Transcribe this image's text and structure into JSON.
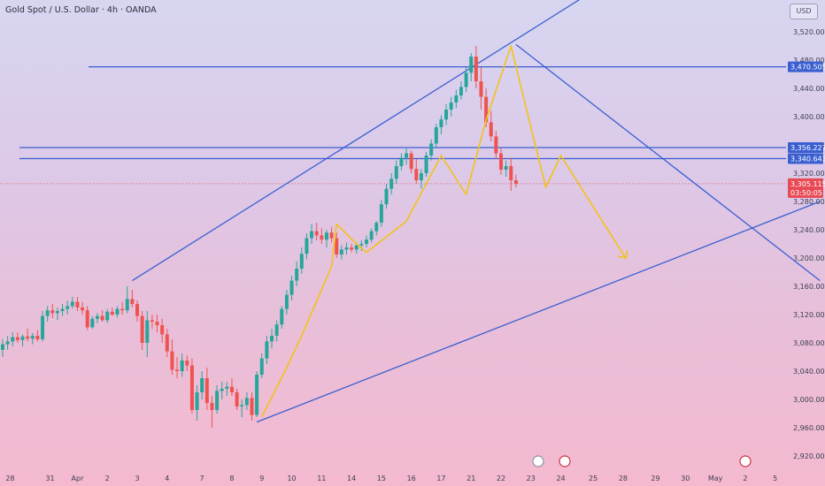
{
  "header": {
    "title": "Gold Spot / U.S. Dollar · 4h · OANDA",
    "currency": "USD"
  },
  "colors": {
    "up": "#26a69a",
    "down": "#ef5350",
    "trendline": "#3a5fd0",
    "projection": "#f2c21b",
    "current_price": "#e84a55"
  },
  "chart_data": {
    "type": "candlestick",
    "title": "Gold Spot / U.S. Dollar · 4h · OANDA",
    "ylim": [
      2910,
      3560
    ],
    "y_ticks": [
      2920,
      2960,
      3000,
      3040,
      3080,
      3120,
      3160,
      3200,
      3240,
      3280,
      3320,
      3360,
      3400,
      3440,
      3480,
      3520
    ],
    "y_tick_labels": [
      "2,920.000",
      "2,960.000",
      "3,000.000",
      "3,040.000",
      "3,080.000",
      "3,120.000",
      "3,160.000",
      "3,200.000",
      "3,240.000",
      "3,280.000",
      "3,320.000",
      "3,360.000",
      "3,400.000",
      "3,440.000",
      "3,480.000",
      "3,520.000"
    ],
    "x_ticks": [
      {
        "label": "28",
        "idx": 1.5
      },
      {
        "label": "31",
        "idx": 9.5
      },
      {
        "label": "Apr",
        "idx": 15
      },
      {
        "label": "2",
        "idx": 21
      },
      {
        "label": "3",
        "idx": 27
      },
      {
        "label": "4",
        "idx": 33
      },
      {
        "label": "7",
        "idx": 40
      },
      {
        "label": "8",
        "idx": 46
      },
      {
        "label": "9",
        "idx": 52
      },
      {
        "label": "10",
        "idx": 58
      },
      {
        "label": "11",
        "idx": 64
      },
      {
        "label": "14",
        "idx": 70
      },
      {
        "label": "15",
        "idx": 76
      },
      {
        "label": "16",
        "idx": 82
      },
      {
        "label": "17",
        "idx": 88
      },
      {
        "label": "21",
        "idx": 94
      },
      {
        "label": "22",
        "idx": 100
      },
      {
        "label": "23",
        "idx": 106
      },
      {
        "label": "24",
        "idx": 112
      },
      {
        "label": "25",
        "idx": 118.5
      },
      {
        "label": "28",
        "idx": 124.5
      },
      {
        "label": "29",
        "idx": 131
      },
      {
        "label": "30",
        "idx": 137
      },
      {
        "label": "May",
        "idx": 143
      },
      {
        "label": "2",
        "idx": 149
      },
      {
        "label": "5",
        "idx": 155
      }
    ],
    "candles": [
      [
        3070,
        3085,
        3060,
        3078
      ],
      [
        3078,
        3090,
        3070,
        3082
      ],
      [
        3082,
        3095,
        3075,
        3088
      ],
      [
        3088,
        3095,
        3080,
        3084
      ],
      [
        3084,
        3092,
        3075,
        3089
      ],
      [
        3089,
        3100,
        3082,
        3086
      ],
      [
        3086,
        3094,
        3078,
        3090
      ],
      [
        3090,
        3098,
        3082,
        3085
      ],
      [
        3085,
        3125,
        3082,
        3118
      ],
      [
        3118,
        3132,
        3110,
        3126
      ],
      [
        3126,
        3135,
        3115,
        3122
      ],
      [
        3122,
        3130,
        3112,
        3125
      ],
      [
        3125,
        3135,
        3118,
        3128
      ],
      [
        3128,
        3140,
        3120,
        3132
      ],
      [
        3132,
        3145,
        3128,
        3138
      ],
      [
        3138,
        3145,
        3125,
        3130
      ],
      [
        3130,
        3138,
        3120,
        3126
      ],
      [
        3126,
        3132,
        3098,
        3102
      ],
      [
        3102,
        3118,
        3100,
        3114
      ],
      [
        3114,
        3122,
        3108,
        3118
      ],
      [
        3118,
        3126,
        3110,
        3112
      ],
      [
        3112,
        3128,
        3108,
        3124
      ],
      [
        3124,
        3130,
        3118,
        3120
      ],
      [
        3120,
        3132,
        3116,
        3128
      ],
      [
        3128,
        3138,
        3120,
        3126
      ],
      [
        3126,
        3160,
        3122,
        3142
      ],
      [
        3142,
        3155,
        3130,
        3135
      ],
      [
        3135,
        3140,
        3110,
        3118
      ],
      [
        3118,
        3125,
        3070,
        3080
      ],
      [
        3080,
        3125,
        3060,
        3112
      ],
      [
        3112,
        3120,
        3100,
        3110
      ],
      [
        3110,
        3120,
        3095,
        3105
      ],
      [
        3105,
        3114,
        3080,
        3092
      ],
      [
        3092,
        3100,
        3060,
        3068
      ],
      [
        3068,
        3085,
        3035,
        3042
      ],
      [
        3042,
        3060,
        3030,
        3040
      ],
      [
        3040,
        3065,
        3032,
        3055
      ],
      [
        3055,
        3062,
        3040,
        3048
      ],
      [
        3048,
        3058,
        2980,
        2985
      ],
      [
        2985,
        3020,
        2970,
        3010
      ],
      [
        3010,
        3040,
        3000,
        3030
      ],
      [
        3030,
        3045,
        2985,
        2995
      ],
      [
        2995,
        3005,
        2960,
        2985
      ],
      [
        2985,
        3020,
        2980,
        3012
      ],
      [
        3012,
        3025,
        3000,
        3015
      ],
      [
        3015,
        3025,
        3005,
        3018
      ],
      [
        3018,
        3030,
        3005,
        3010
      ],
      [
        3010,
        3015,
        2985,
        2990
      ],
      [
        2990,
        3000,
        2975,
        2992
      ],
      [
        2992,
        3010,
        2985,
        3002
      ],
      [
        3002,
        3010,
        2970,
        2978
      ],
      [
        2978,
        3040,
        2975,
        3035
      ],
      [
        3035,
        3065,
        3030,
        3058
      ],
      [
        3058,
        3090,
        3050,
        3082
      ],
      [
        3082,
        3100,
        3072,
        3090
      ],
      [
        3090,
        3112,
        3082,
        3106
      ],
      [
        3106,
        3132,
        3100,
        3128
      ],
      [
        3128,
        3155,
        3120,
        3148
      ],
      [
        3148,
        3175,
        3140,
        3168
      ],
      [
        3168,
        3195,
        3160,
        3185
      ],
      [
        3185,
        3215,
        3178,
        3206
      ],
      [
        3206,
        3235,
        3198,
        3228
      ],
      [
        3228,
        3248,
        3220,
        3238
      ],
      [
        3238,
        3250,
        3225,
        3232
      ],
      [
        3232,
        3242,
        3220,
        3226
      ],
      [
        3226,
        3240,
        3215,
        3236
      ],
      [
        3236,
        3244,
        3222,
        3228
      ],
      [
        3228,
        3236,
        3200,
        3205
      ],
      [
        3205,
        3218,
        3198,
        3212
      ],
      [
        3212,
        3222,
        3205,
        3215
      ],
      [
        3215,
        3220,
        3208,
        3212
      ],
      [
        3212,
        3222,
        3206,
        3218
      ],
      [
        3218,
        3225,
        3210,
        3220
      ],
      [
        3220,
        3232,
        3215,
        3226
      ],
      [
        3226,
        3242,
        3222,
        3238
      ],
      [
        3238,
        3252,
        3232,
        3250
      ],
      [
        3250,
        3282,
        3244,
        3276
      ],
      [
        3276,
        3305,
        3270,
        3298
      ],
      [
        3298,
        3320,
        3290,
        3312
      ],
      [
        3312,
        3338,
        3305,
        3330
      ],
      [
        3330,
        3348,
        3324,
        3342
      ],
      [
        3342,
        3355,
        3332,
        3348
      ],
      [
        3348,
        3352,
        3320,
        3326
      ],
      [
        3326,
        3340,
        3305,
        3310
      ],
      [
        3310,
        3326,
        3298,
        3320
      ],
      [
        3320,
        3350,
        3315,
        3345
      ],
      [
        3345,
        3368,
        3338,
        3362
      ],
      [
        3362,
        3390,
        3355,
        3385
      ],
      [
        3385,
        3402,
        3375,
        3396
      ],
      [
        3396,
        3418,
        3388,
        3410
      ],
      [
        3410,
        3428,
        3400,
        3420
      ],
      [
        3420,
        3438,
        3412,
        3430
      ],
      [
        3430,
        3450,
        3424,
        3442
      ],
      [
        3442,
        3470,
        3435,
        3462
      ],
      [
        3462,
        3490,
        3450,
        3485
      ],
      [
        3485,
        3500,
        3440,
        3450
      ],
      [
        3450,
        3470,
        3410,
        3428
      ],
      [
        3428,
        3440,
        3385,
        3392
      ],
      [
        3392,
        3408,
        3365,
        3372
      ],
      [
        3372,
        3380,
        3340,
        3348
      ],
      [
        3348,
        3355,
        3318,
        3325
      ],
      [
        3325,
        3338,
        3315,
        3330
      ],
      [
        3330,
        3342,
        3295,
        3310
      ],
      [
        3310,
        3318,
        3300,
        3305
      ]
    ],
    "horizontal_lines": [
      {
        "price": 3470.505,
        "label": "3,470.505"
      },
      {
        "price": 3356.227,
        "label": "3,356.227"
      },
      {
        "price": 3340.643,
        "label": "3,340.643"
      }
    ],
    "current_price": {
      "price": 3305.115,
      "label": "3,305.115",
      "countdown": "03:50:05"
    },
    "trendlines": [
      {
        "from": [
          26,
          3168
        ],
        "to": [
          119,
          3580
        ]
      },
      {
        "from": [
          51,
          2968
        ],
        "to": [
          164,
          3280
        ]
      },
      {
        "from": [
          103,
          3502
        ],
        "to": [
          164,
          3168
        ]
      }
    ],
    "projection_path": [
      [
        52,
        2975
      ],
      [
        57,
        3045
      ],
      [
        60,
        3090
      ],
      [
        66,
        3188
      ],
      [
        67,
        3248
      ],
      [
        71,
        3220
      ],
      [
        73,
        3208
      ],
      [
        81,
        3252
      ],
      [
        88,
        3345
      ],
      [
        93,
        3290
      ],
      [
        97,
        3395
      ],
      [
        102,
        3500
      ],
      [
        106,
        3385
      ],
      [
        109,
        3300
      ],
      [
        112,
        3345
      ],
      [
        125,
        3200
      ]
    ]
  }
}
